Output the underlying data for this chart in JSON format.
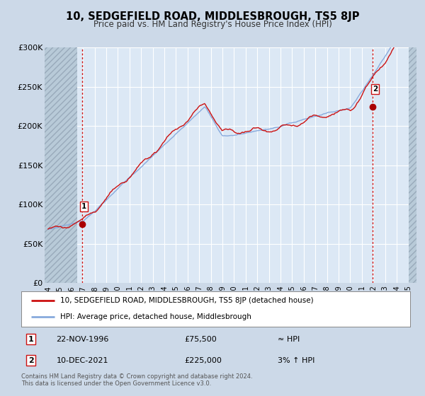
{
  "title": "10, SEDGEFIELD ROAD, MIDDLESBROUGH, TS5 8JP",
  "subtitle": "Price paid vs. HM Land Registry's House Price Index (HPI)",
  "bg_color": "#ccd9e8",
  "plot_bg_color": "#dce8f5",
  "line_color_hpi": "#88aadd",
  "line_color_price": "#cc1111",
  "marker_color": "#aa0000",
  "ylim": [
    0,
    300000
  ],
  "yticks": [
    0,
    50000,
    100000,
    150000,
    200000,
    250000,
    300000
  ],
  "ytick_labels": [
    "£0",
    "£50K",
    "£100K",
    "£150K",
    "£200K",
    "£250K",
    "£300K"
  ],
  "xlim_start": 1993.7,
  "xlim_end": 2025.7,
  "xticks": [
    1994,
    1995,
    1996,
    1997,
    1998,
    1999,
    2000,
    2001,
    2002,
    2003,
    2004,
    2005,
    2006,
    2007,
    2008,
    2009,
    2010,
    2011,
    2012,
    2013,
    2014,
    2015,
    2016,
    2017,
    2018,
    2019,
    2020,
    2021,
    2022,
    2023,
    2024,
    2025
  ],
  "sale1_x": 1996.9,
  "sale1_y": 75500,
  "sale1_label": "1",
  "sale1_date": "22-NOV-1996",
  "sale1_price": "£75,500",
  "sale1_hpi": "≈ HPI",
  "sale2_x": 2021.95,
  "sale2_y": 225000,
  "sale2_label": "2",
  "sale2_date": "10-DEC-2021",
  "sale2_price": "£225,000",
  "sale2_hpi": "3% ↑ HPI",
  "legend_line1": "10, SEDGEFIELD ROAD, MIDDLESBROUGH, TS5 8JP (detached house)",
  "legend_line2": "HPI: Average price, detached house, Middlesbrough",
  "footer": "Contains HM Land Registry data © Crown copyright and database right 2024.\nThis data is licensed under the Open Government Licence v3.0.",
  "hatch_left_end": 1996.5,
  "hatch_right_start": 2025.0,
  "data_start": 1994.25,
  "data_end": 2025.5
}
